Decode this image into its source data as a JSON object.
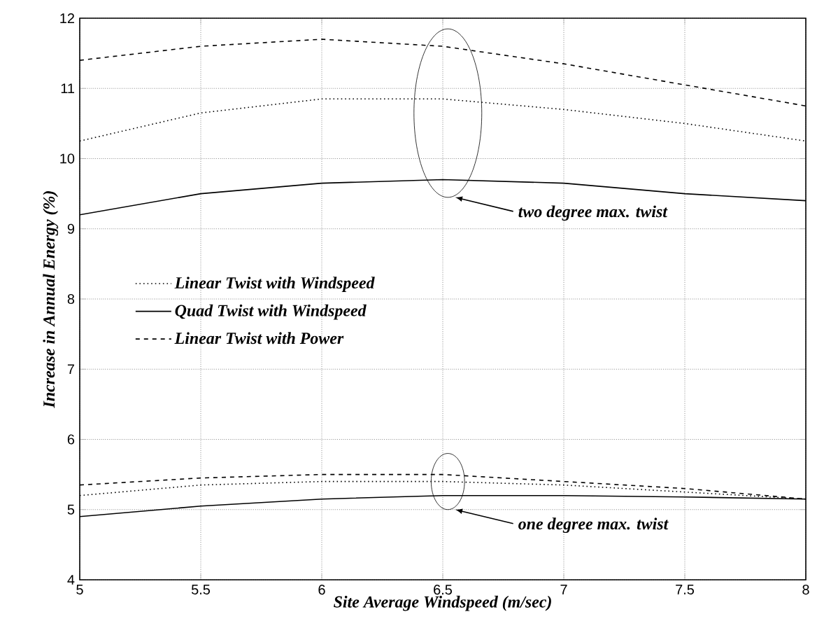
{
  "chart_data": {
    "type": "line",
    "xlabel": "Site Average Windspeed (m/sec)",
    "ylabel": "Increase in Annual Energy (%)",
    "x": [
      5,
      5.5,
      6,
      6.5,
      7,
      7.5,
      8
    ],
    "series": [
      {
        "name": "Linear Twist with Windspeed",
        "color": "#000000",
        "line_style": "dotted",
        "values": [
          10.25,
          10.65,
          10.85,
          10.85,
          10.7,
          10.5,
          10.25
        ]
      },
      {
        "name": "Quad Twist with Windspeed",
        "color": "#000000",
        "line_style": "solid",
        "values": [
          9.2,
          9.5,
          9.65,
          9.7,
          9.65,
          9.5,
          9.4
        ]
      },
      {
        "name": "Linear Twist with Power",
        "color": "#000000",
        "line_style": "dashed",
        "values": [
          11.4,
          11.6,
          11.7,
          11.6,
          11.35,
          11.05,
          10.75
        ]
      },
      {
        "color": "#000000",
        "line_style": "dotted",
        "values": [
          5.2,
          5.35,
          5.4,
          5.4,
          5.35,
          5.25,
          5.15
        ]
      },
      {
        "color": "#000000",
        "line_style": "solid",
        "values": [
          4.9,
          5.05,
          5.15,
          5.2,
          5.2,
          5.18,
          5.15
        ]
      },
      {
        "color": "#000000",
        "line_style": "dashed",
        "values": [
          5.35,
          5.45,
          5.5,
          5.5,
          5.4,
          5.3,
          5.15
        ]
      }
    ],
    "xlim": [
      5,
      8
    ],
    "ylim": [
      4,
      12
    ],
    "xticks": [
      5,
      5.5,
      6,
      6.5,
      7,
      7.5,
      8
    ],
    "yticks": [
      4,
      5,
      6,
      7,
      8,
      9,
      10,
      11,
      12
    ],
    "grid": true,
    "legend": "left",
    "annotations": [
      "two degree max. twist",
      "one degree max. twist"
    ]
  }
}
